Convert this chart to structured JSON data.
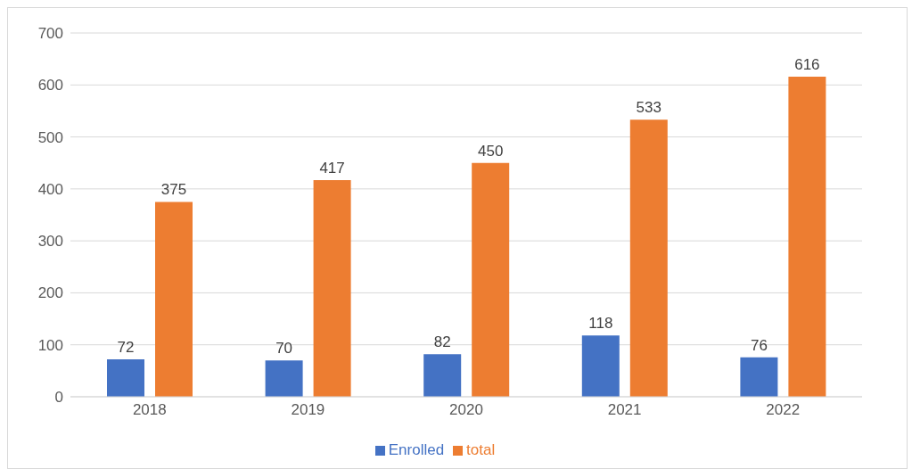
{
  "chart_data": {
    "type": "bar",
    "categories": [
      "2018",
      "2019",
      "2020",
      "2021",
      "2022"
    ],
    "series": [
      {
        "name": "Enrolled",
        "color": "#4472c4",
        "values": [
          72,
          70,
          82,
          118,
          76
        ]
      },
      {
        "name": "total",
        "color": "#ed7d31",
        "values": [
          375,
          417,
          450,
          533,
          616
        ]
      }
    ],
    "ylim": [
      0,
      700
    ],
    "yticks": [
      0,
      100,
      200,
      300,
      400,
      500,
      600,
      700
    ],
    "grid": "y",
    "legend": "bottom",
    "data_labels": true
  }
}
